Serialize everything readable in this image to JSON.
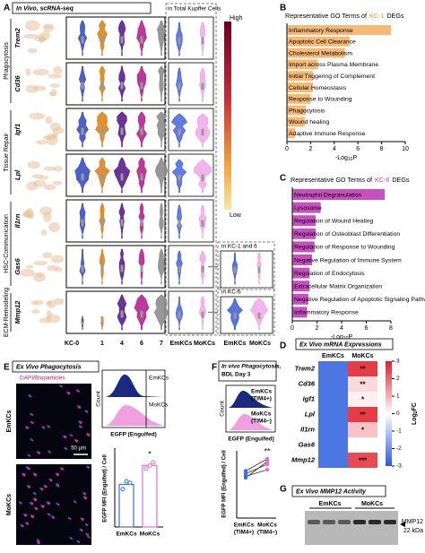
{
  "panel_labels": [
    "A",
    "B",
    "C",
    "D",
    "E",
    "F",
    "G"
  ],
  "panel_a": {
    "header_left": "In Vivo, scRNA-seq",
    "header_right": "in Total Kupffer Cells",
    "scale_high": "High",
    "scale_low": "Low",
    "genes": [
      "Trem2",
      "Cd36",
      "Igf1",
      "Lpl",
      "Il1rn",
      "Gas6",
      "Mmp12"
    ],
    "groups": [
      "Phagocytosis",
      "Tissue Repair",
      "HSC-Communication",
      "ECM-Remodeling"
    ],
    "x_labels": [
      "KC-0",
      "1",
      "4",
      "6",
      "7",
      "EmKCs",
      "MoKCs",
      "EmKCs",
      "MoKCs"
    ],
    "inset_1": "in KC-1 and 6",
    "inset_2": "in KC-6"
  },
  "chart_data": [
    {
      "type": "bar",
      "orientation": "horizontal",
      "title_prefix": "Representative GO Terms of",
      "title_highlight": "KC-1",
      "title_suffix": "DEGs",
      "highlight_color": "#f08c1e",
      "categories": [
        "Inflammatory Response",
        "Apoptotic Cell Clearance",
        "Cholesterol Metabolism",
        "Import across Plasma Membrane",
        "Initial Triggering of Complement",
        "Cellular Homeostasis",
        "Response to Wounding",
        "Phagocytosis",
        "Wound healing",
        "Adaptive Immune Response"
      ],
      "values": [
        8.8,
        5.3,
        4.9,
        2.6,
        2.2,
        2.2,
        2.0,
        1.6,
        1.5,
        0.7
      ],
      "color": "#f6b978",
      "xlim": [
        0,
        10
      ],
      "xticks": [
        0,
        2,
        4,
        6,
        8,
        10
      ],
      "x_label_main": "-Log",
      "x_label_sub": "10",
      "x_label_end": "P"
    },
    {
      "type": "bar",
      "orientation": "horizontal",
      "title_prefix": "Representative GO Terms of",
      "title_highlight": "KC-6",
      "title_suffix": "DEGs",
      "highlight_color": "#c13fb5",
      "categories": [
        "Neutrophil Degranulation",
        "Lysosome",
        "Regulation of Wound Healing",
        "Regulation of Osteoblast Differentiation",
        "Regulation of Response to Wounding",
        "Negative Regulation of Immune System",
        "Regulation of Endocytosis",
        "Extracellular Matrix Organization",
        "Negative Regulation of Apoptotic Signaling Pathway",
        "Inflammatory Response"
      ],
      "values": [
        7.5,
        2.3,
        1.9,
        1.9,
        1.8,
        1.6,
        1.4,
        1.4,
        1.3,
        1.2
      ],
      "color": "#c84fc0",
      "xlim": [
        0,
        8
      ],
      "xticks": [
        0,
        2,
        4,
        6,
        8
      ],
      "x_label_main": "-Log",
      "x_label_sub": "10",
      "x_label_end": "P"
    },
    {
      "type": "heatmap",
      "title": "Ex Vivo mRNA Expressions",
      "columns": [
        "EmKCs",
        "MoKCs"
      ],
      "rows": [
        "Trem2",
        "Cd36",
        "Igf1",
        "Lpl",
        "Il1rn",
        "Gas6",
        "Mmp12"
      ],
      "values": [
        [
          -2.5,
          2.6
        ],
        [
          -2.5,
          0.5
        ],
        [
          -2.5,
          0.2
        ],
        [
          -2.5,
          2.6
        ],
        [
          -2.5,
          0.8
        ],
        [
          -2.5,
          0
        ],
        [
          -2.5,
          2.4
        ]
      ],
      "stars": [
        "**",
        "**",
        "*",
        "**",
        "*",
        null,
        "***"
      ],
      "zlim": [
        -3,
        3
      ],
      "zticks": [
        3,
        2,
        1,
        0,
        -1,
        -2,
        -3
      ],
      "z_label_main": "Log",
      "z_label_sub": "2",
      "z_label_end": "FC"
    },
    {
      "type": "bar",
      "title": "Ex Vivo Phagocytosis",
      "stain": "DAPI/Bioparticles",
      "image_labels": [
        "EmKCs",
        "MoKCs"
      ],
      "scale_bar": "50 μm",
      "hist_labels": [
        "EmKCs",
        "MoKCs"
      ],
      "hist_y_label": "Count",
      "hist_x_label": "EGFP (Engulfed)",
      "categories": [
        "EmKCs",
        "MoKCs"
      ],
      "values": [
        2.7,
        3.9
      ],
      "points": [
        [
          2.4,
          2.9,
          2.8
        ],
        [
          3.7,
          3.9,
          4.1
        ]
      ],
      "colors": [
        "#3a6fd8",
        "#e070d0"
      ],
      "ylim": [
        0,
        5
      ],
      "y_label": "EGFP MFI (Engulfed) / Cell",
      "annotation": "*"
    },
    {
      "type": "paired",
      "title_lines": [
        "In vivo Phagocytosis,",
        "BDL Day 3"
      ],
      "hist_labels": [
        [
          "EmKCs",
          "(TIM4+)"
        ],
        [
          "MoKCs",
          "(TIM4−)"
        ]
      ],
      "hist_y_label": "Count",
      "hist_x_label": "EGFP (Engulfed)",
      "categories": [
        [
          "EmKCs",
          "(TIM4+)"
        ],
        [
          "MoKCs",
          "(TIM4−)"
        ]
      ],
      "series": [
        {
          "values": [
            3.0,
            4.2
          ]
        },
        {
          "values": [
            3.3,
            4.0
          ]
        },
        {
          "values": [
            3.5,
            4.4
          ]
        },
        {
          "values": [
            3.1,
            3.6
          ]
        }
      ],
      "colors": [
        "#3a6fd8",
        "#e070d0"
      ],
      "ylim": [
        0,
        5
      ],
      "y_label": "EGFP MFI (Engulfed) / Cell",
      "annotation": "**"
    }
  ],
  "panel_g": {
    "title": "Ex Vivo MMP12 Activity",
    "lanes": [
      "EmKCs",
      "MoKCs"
    ],
    "band": "MMP12",
    "size": "22 kDa"
  }
}
